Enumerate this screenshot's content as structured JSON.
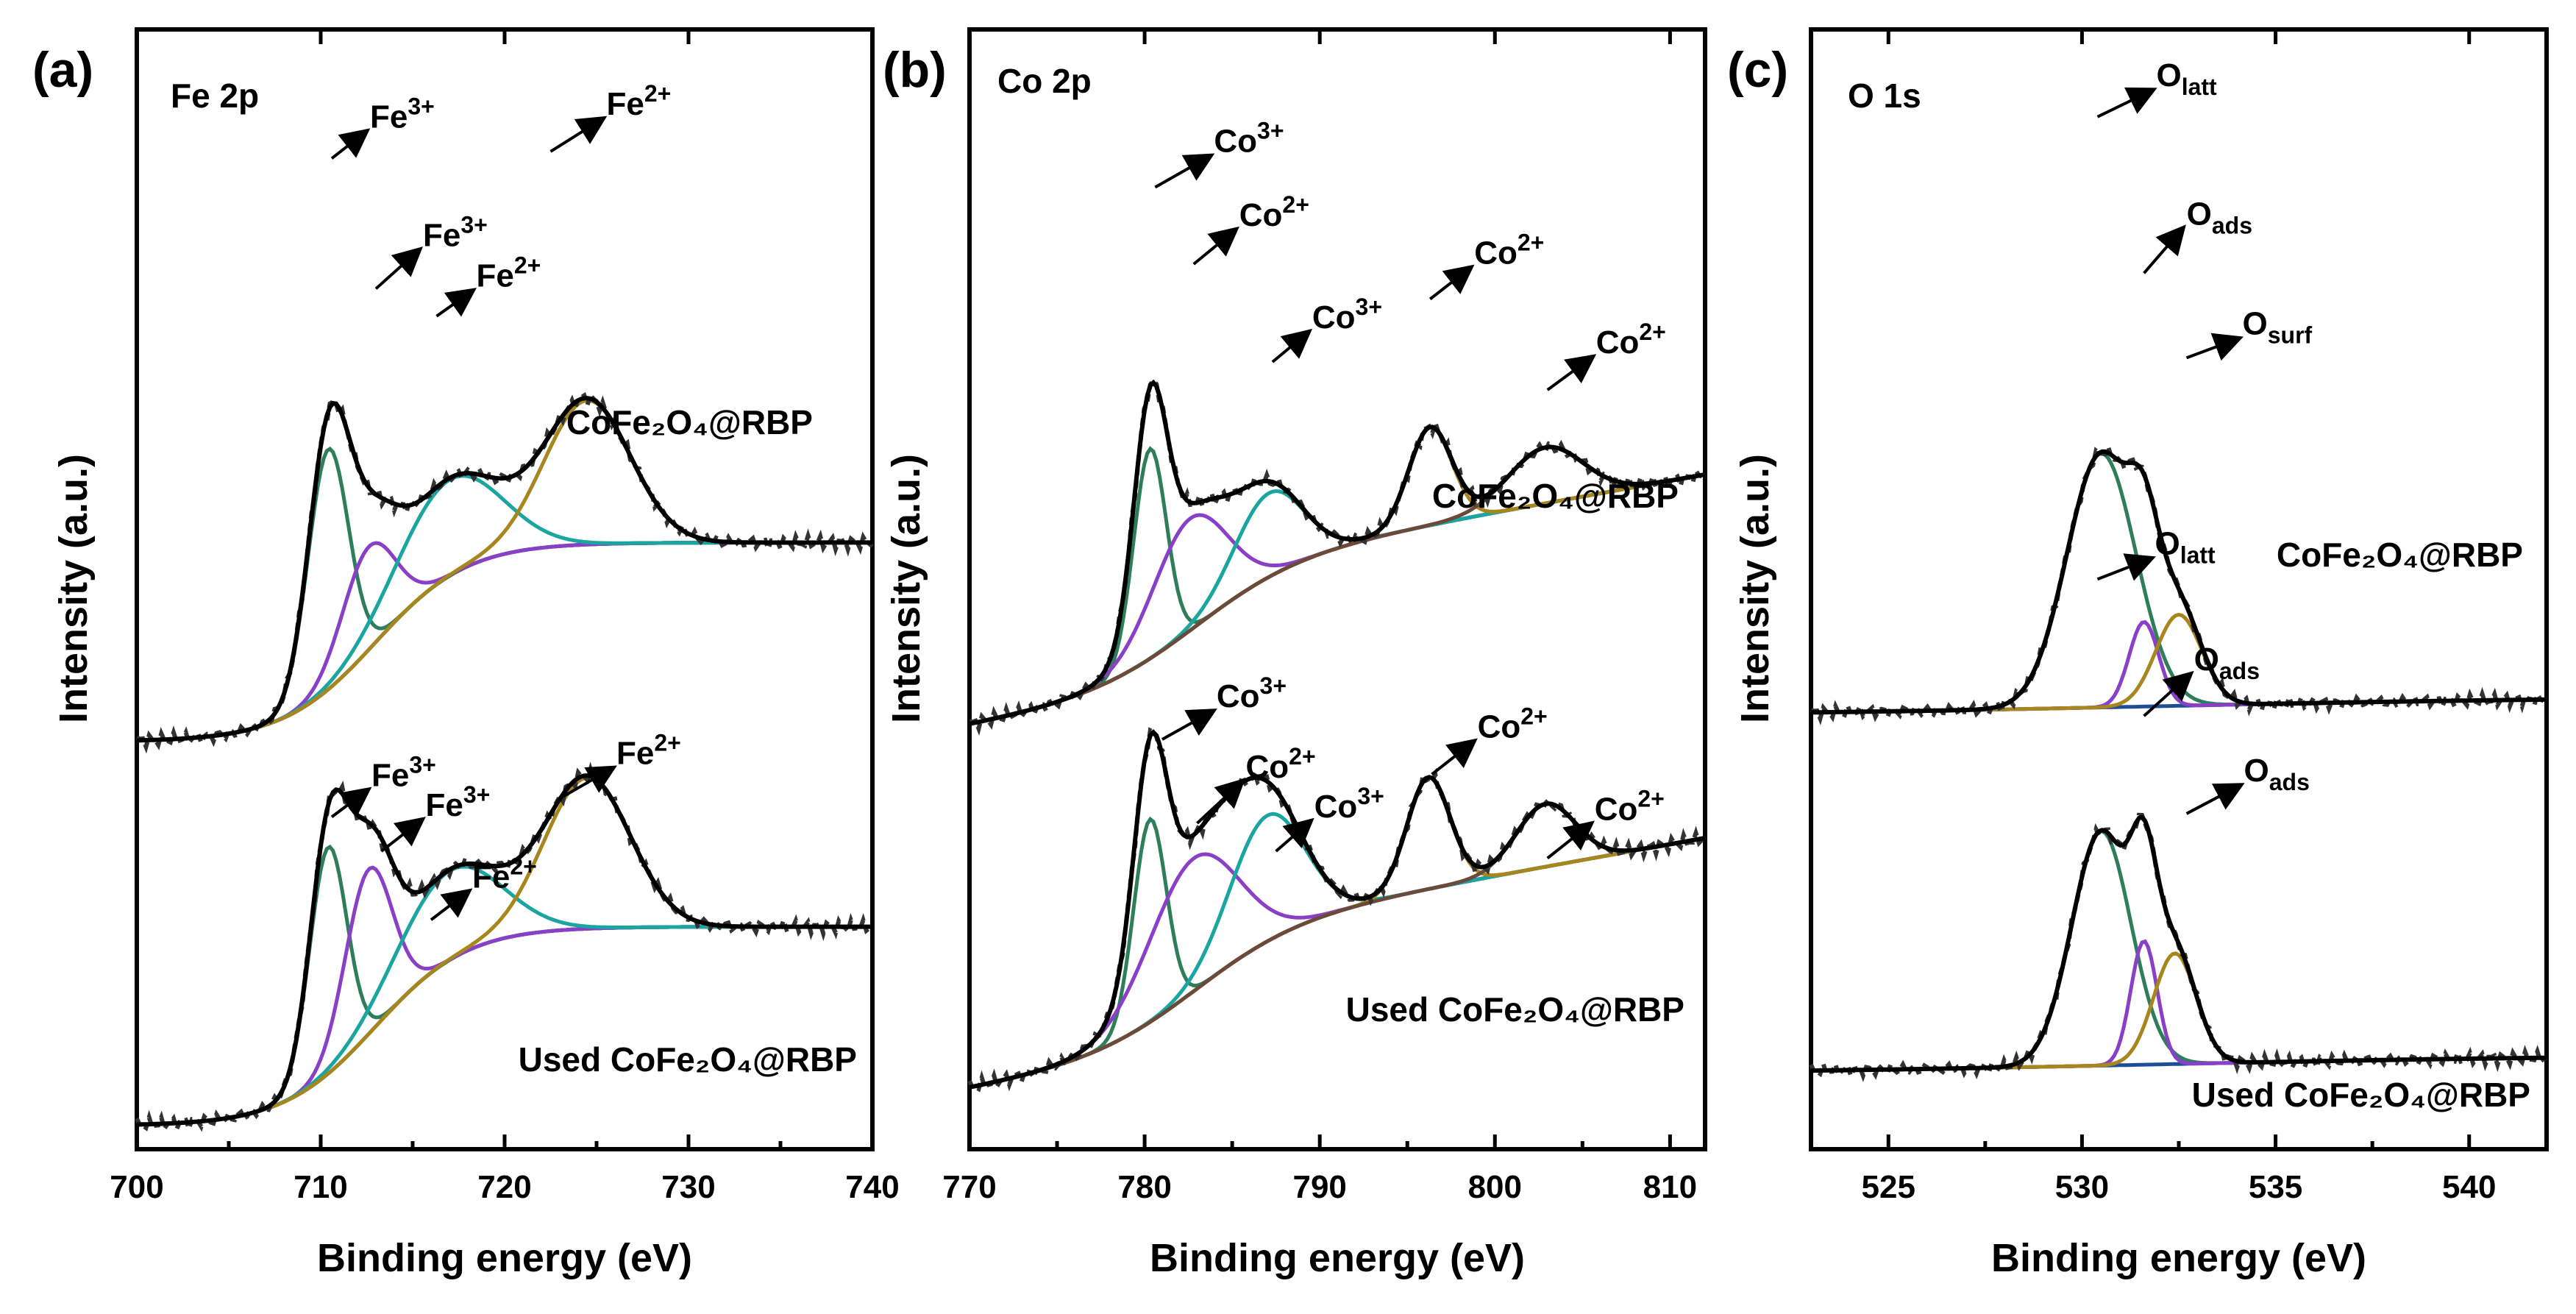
{
  "colors": {
    "experimental": "#333333",
    "envelope": "#000000",
    "background": "#1f4e99",
    "green": "#2e7d5b",
    "purple": "#8a3fc7",
    "teal": "#1aa5a0",
    "gold": "#a8861e",
    "brown": "#6b4a3a"
  },
  "chart_data": [
    {
      "type": "line",
      "panel_label": "(a)",
      "title": "Fe 2p",
      "xlabel": "Binding energy (eV)",
      "ylabel": "Intensity (a.u.)",
      "xlim": [
        700,
        740
      ],
      "xticks": [
        "700",
        "710",
        "720",
        "730",
        "740"
      ],
      "xtick_values": [
        700,
        710,
        720,
        730,
        740
      ],
      "ylim": [
        0,
        1
      ],
      "spectra": [
        {
          "sample": "CoFe2O4@RBP",
          "sample_display": "CoFe₂O₄@RBP",
          "offset": 0.56,
          "baseline": {
            "low": 0.0,
            "high": 0.29,
            "center": 713,
            "width": 2.5
          },
          "components": [
            {
              "name": "Fe3+",
              "center": 710.4,
              "fwhm": 2.6,
              "height": 0.35,
              "color": "green"
            },
            {
              "name": "Fe3+",
              "center": 712.6,
              "fwhm": 3.4,
              "height": 0.15,
              "color": "purple"
            },
            {
              "name": "Fe2+",
              "center": 717.0,
              "fwhm": 6.5,
              "height": 0.14,
              "color": "teal"
            },
            {
              "name": "Fe2+",
              "center": 724.5,
              "fwhm": 5.5,
              "height": 0.21,
              "color": "gold"
            }
          ]
        },
        {
          "sample": "Used CoFe2O4@RBP",
          "sample_display": "Used CoFe₂O₄@RBP",
          "offset": 0.0,
          "baseline": {
            "low": 0.0,
            "high": 0.29,
            "center": 713,
            "width": 2.5
          },
          "components": [
            {
              "name": "Fe3+",
              "center": 710.4,
              "fwhm": 2.4,
              "height": 0.33,
              "color": "green"
            },
            {
              "name": "Fe3+",
              "center": 712.6,
              "fwhm": 3.0,
              "height": 0.24,
              "color": "purple"
            },
            {
              "name": "Fe2+",
              "center": 717.0,
              "fwhm": 6.5,
              "height": 0.13,
              "color": "teal"
            },
            {
              "name": "Fe2+",
              "center": 724.5,
              "fwhm": 5.5,
              "height": 0.22,
              "color": "gold"
            }
          ]
        }
      ],
      "annotations": [
        {
          "text": "Fe",
          "sup": "3+",
          "tip": [
            710.6,
            1.41
          ],
          "spec": 0,
          "dx": 46,
          "dy": -36
        },
        {
          "text": "Fe",
          "sup": "3+",
          "tip": [
            713.0,
            1.22
          ],
          "spec": 0,
          "dx": 58,
          "dy": -52
        },
        {
          "text": "Fe",
          "sup": "2+",
          "tip": [
            716.3,
            1.18
          ],
          "spec": 0,
          "dx": 48,
          "dy": -34
        },
        {
          "text": "Fe",
          "sup": "2+",
          "tip": [
            722.5,
            1.42
          ],
          "spec": 0,
          "dx": 70,
          "dy": -44
        },
        {
          "text": "Fe",
          "sup": "3+",
          "tip": [
            710.6,
            0.45
          ],
          "spec": 1,
          "dx": 48,
          "dy": -36
        },
        {
          "text": "Fe",
          "sup": "3+",
          "tip": [
            713.3,
            0.4
          ],
          "spec": 1,
          "dx": 54,
          "dy": -42
        },
        {
          "text": "Fe",
          "sup": "2+",
          "tip": [
            716.0,
            0.3
          ],
          "spec": 1,
          "dx": 50,
          "dy": -38
        },
        {
          "text": "Fe",
          "sup": "2+",
          "tip": [
            723.2,
            0.48
          ],
          "spec": 1,
          "dx": 66,
          "dy": -38
        }
      ]
    },
    {
      "type": "line",
      "panel_label": "(b)",
      "title": "Co 2p",
      "xlabel": "Binding energy (eV)",
      "ylabel": "Intensity (a.u.)",
      "xlim": [
        770,
        812
      ],
      "xticks": [
        "770",
        "780",
        "790",
        "800",
        "810"
      ],
      "xtick_values": [
        770,
        780,
        790,
        800,
        810
      ],
      "ylim": [
        0,
        1
      ],
      "spectra": [
        {
          "sample": "CoFe2O4@RBP",
          "sample_display": "CoFe₂O₄@RBP",
          "offset": 0.52,
          "baseline": {
            "low": 0.0,
            "high": 0.17,
            "center": 783,
            "width": 3.0,
            "slope": 0.0045
          },
          "components": [
            {
              "name": "Co3+",
              "center": 780.3,
              "fwhm": 2.2,
              "height": 0.3,
              "color": "green"
            },
            {
              "name": "Co2+",
              "center": 782.6,
              "fwhm": 5.0,
              "height": 0.16,
              "color": "purple"
            },
            {
              "name": "Co3+",
              "center": 787.1,
              "fwhm": 4.6,
              "height": 0.12,
              "color": "teal"
            },
            {
              "name": "Co2+",
              "center": 796.3,
              "fwhm": 2.9,
              "height": 0.14,
              "color": "gold"
            },
            {
              "name": "Co2+",
              "center": 802.9,
              "fwhm": 5.0,
              "height": 0.08,
              "color": "brown"
            }
          ]
        },
        {
          "sample": "Used CoFe2O4@RBP",
          "sample_display": "Used CoFe₂O₄@RBP",
          "offset": 0.0,
          "baseline": {
            "low": 0.0,
            "high": 0.17,
            "center": 783,
            "width": 3.0,
            "slope": 0.0045
          },
          "components": [
            {
              "name": "Co3+",
              "center": 780.3,
              "fwhm": 2.2,
              "height": 0.29,
              "color": "green"
            },
            {
              "name": "Co2+",
              "center": 782.8,
              "fwhm": 6.0,
              "height": 0.19,
              "color": "purple"
            },
            {
              "name": "Co3+",
              "center": 787.0,
              "fwhm": 5.0,
              "height": 0.18,
              "color": "teal"
            },
            {
              "name": "Co2+",
              "center": 796.2,
              "fwhm": 2.9,
              "height": 0.16,
              "color": "gold"
            },
            {
              "name": "Co2+",
              "center": 802.9,
              "fwhm": 4.0,
              "height": 0.09,
              "color": "brown"
            }
          ]
        }
      ],
      "annotations": [
        {
          "text": "Co",
          "sup": "3+",
          "tip": [
            780.6,
            1.29
          ],
          "spec": 0,
          "dx": 74,
          "dy": -42
        },
        {
          "text": "Co",
          "sup": "2+",
          "tip": [
            782.8,
            1.18
          ],
          "spec": 0,
          "dx": 56,
          "dy": -46
        },
        {
          "text": "Co",
          "sup": "3+",
          "tip": [
            787.3,
            1.04
          ],
          "spec": 0,
          "dx": 48,
          "dy": -40
        },
        {
          "text": "Co",
          "sup": "2+",
          "tip": [
            796.3,
            1.13
          ],
          "spec": 0,
          "dx": 54,
          "dy": -42
        },
        {
          "text": "Co",
          "sup": "2+",
          "tip": [
            803.0,
            1.0
          ],
          "spec": 0,
          "dx": 60,
          "dy": -44
        },
        {
          "text": "Co",
          "sup": "3+",
          "tip": [
            781.0,
            0.5
          ],
          "spec": 1,
          "dx": 68,
          "dy": -38
        },
        {
          "text": "Co",
          "sup": "2+",
          "tip": [
            783.0,
            0.38
          ],
          "spec": 1,
          "dx": 60,
          "dy": -56
        },
        {
          "text": "Co",
          "sup": "3+",
          "tip": [
            787.5,
            0.34
          ],
          "spec": 1,
          "dx": 46,
          "dy": -40
        },
        {
          "text": "Co",
          "sup": "2+",
          "tip": [
            796.4,
            0.45
          ],
          "spec": 1,
          "dx": 56,
          "dy": -44
        },
        {
          "text": "Co",
          "sup": "2+",
          "tip": [
            803.0,
            0.33
          ],
          "spec": 1,
          "dx": 58,
          "dy": -46
        }
      ]
    },
    {
      "type": "line",
      "panel_label": "(c)",
      "title": "O 1s",
      "xlabel": "Binding energy (eV)",
      "ylabel": "Intensity (a.u.)",
      "xlim": [
        523,
        542
      ],
      "xticks": [
        "525",
        "530",
        "535",
        "540"
      ],
      "xtick_values": [
        525,
        530,
        535,
        540
      ],
      "ylim": [
        0,
        1
      ],
      "spectra": [
        {
          "sample": "CoFe2O4@RBP",
          "sample_display": "CoFe₂O₄@RBP",
          "offset": 0.55,
          "baseline": {
            "low": 0.0,
            "high": 0.03,
            "center": 532,
            "width": 6.0
          },
          "components": [
            {
              "name": "Olatt",
              "center": 530.5,
              "fwhm": 2.1,
              "height": 0.39,
              "color": "green"
            },
            {
              "name": "Oads",
              "center": 531.6,
              "fwhm": 0.9,
              "height": 0.13,
              "color": "purple"
            },
            {
              "name": "Osurf",
              "center": 532.5,
              "fwhm": 1.4,
              "height": 0.14,
              "color": "gold"
            }
          ]
        },
        {
          "sample": "Used CoFe2O4@RBP",
          "sample_display": "Used CoFe₂O₄@RBP",
          "offset": 0.0,
          "baseline": {
            "low": 0.0,
            "high": 0.03,
            "center": 532,
            "width": 6.0
          },
          "components": [
            {
              "name": "Olatt",
              "center": 530.5,
              "fwhm": 1.8,
              "height": 0.36,
              "color": "green"
            },
            {
              "name": "Oads",
              "center": 531.6,
              "fwhm": 0.8,
              "height": 0.19,
              "color": "purple"
            },
            {
              "name": "Oads",
              "center": 532.4,
              "fwhm": 1.3,
              "height": 0.17,
              "color": "gold"
            }
          ]
        }
      ],
      "annotations": [
        {
          "text": "O",
          "sub": "latt",
          "tip": [
            530.4,
            1.47
          ],
          "spec": 0,
          "dx": 74,
          "dy": -36
        },
        {
          "text": "O",
          "sub": "ads",
          "tip": [
            531.6,
            1.23
          ],
          "spec": 0,
          "dx": 52,
          "dy": -60
        },
        {
          "text": "O",
          "sub": "surf",
          "tip": [
            532.7,
            1.1
          ],
          "spec": 0,
          "dx": 70,
          "dy": -26
        },
        {
          "text": "O",
          "sub": "latt",
          "tip": [
            530.4,
            0.76
          ],
          "spec": 1,
          "dx": 72,
          "dy": -28
        },
        {
          "text": "O",
          "sub": "ads",
          "tip": [
            531.6,
            0.55
          ],
          "spec": 1,
          "dx": 62,
          "dy": -56
        },
        {
          "text": "O",
          "sub": "ads",
          "tip": [
            532.7,
            0.4
          ],
          "spec": 1,
          "dx": 72,
          "dy": -38
        }
      ]
    }
  ]
}
